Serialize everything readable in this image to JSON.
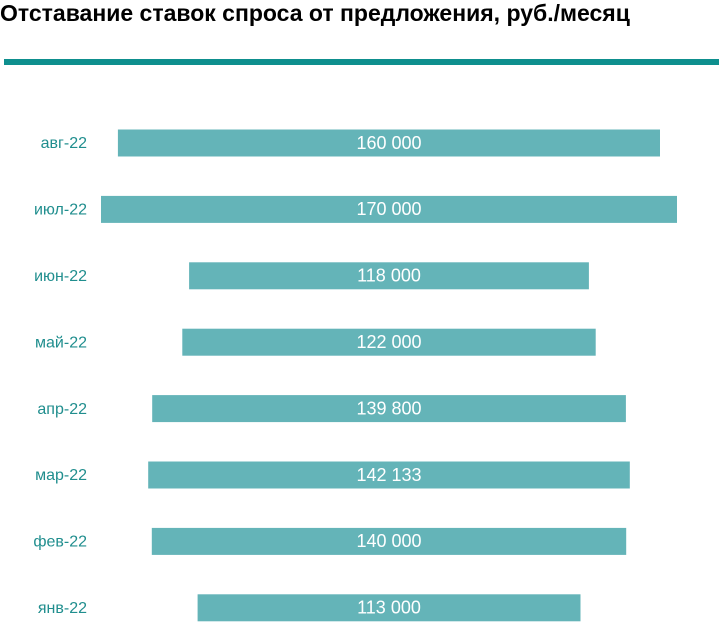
{
  "title": "Отставание ставок спроса от предложения, руб./месяц",
  "colors": {
    "bar": "#64b4b8",
    "rule": "#0e8f8e",
    "category_text": "#208e8e",
    "value_text": "#ffffff"
  },
  "chart_data": {
    "type": "bar",
    "orientation": "horizontal",
    "bar_alignment": "centered",
    "title": "Отставание ставок спроса от предложения, руб./месяц",
    "categories": [
      "авг-22",
      "июл-22",
      "июн-22",
      "май-22",
      "апр-22",
      "мар-22",
      "фев-22",
      "янв-22"
    ],
    "values": [
      160000,
      170000,
      118000,
      122000,
      139800,
      142133,
      140000,
      113000
    ],
    "value_labels": [
      "160 000",
      "170 000",
      "118 000",
      "122 000",
      "139 800",
      "142 133",
      "140 000",
      "113 000"
    ],
    "xlabel": "",
    "ylabel": "",
    "xlim": [
      0,
      170000
    ],
    "grid": false,
    "legend": "none"
  }
}
